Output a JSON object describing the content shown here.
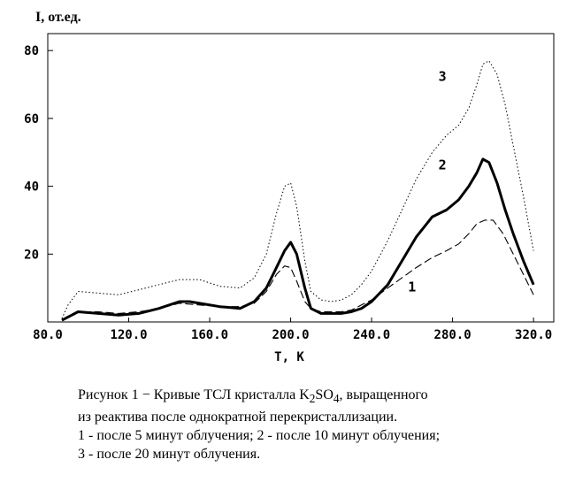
{
  "chart_data": {
    "type": "line",
    "ylabel": "I, от.ед.",
    "xlabel": "T, K",
    "xlim": [
      80,
      330
    ],
    "ylim": [
      0,
      85
    ],
    "xticks": [
      "80.0",
      "120.0",
      "160.0",
      "200.0",
      "240.0",
      "280.0",
      "320.0"
    ],
    "yticks": [
      "20",
      "40",
      "60",
      "80"
    ],
    "grid": false,
    "series": [
      {
        "name": "1",
        "style": "dashed",
        "x": [
          87,
          95,
          105,
          115,
          125,
          135,
          145,
          155,
          165,
          175,
          182,
          188,
          193,
          197,
          200,
          203,
          207,
          210,
          215,
          220,
          225,
          230,
          235,
          240,
          248,
          255,
          262,
          270,
          277,
          283,
          288,
          292,
          296,
          300,
          305,
          310,
          315,
          320
        ],
        "y": [
          0.5,
          3,
          3,
          2.5,
          3,
          4,
          5.5,
          5,
          4.5,
          4.5,
          5.5,
          9,
          14,
          16.5,
          16,
          12,
          6,
          4,
          3,
          3,
          3,
          3.5,
          5,
          6.5,
          10,
          13,
          16,
          19,
          21,
          23,
          26,
          29,
          30,
          30,
          26,
          20,
          14,
          8
        ]
      },
      {
        "name": "2",
        "style": "solid-bold",
        "x": [
          87,
          95,
          105,
          115,
          125,
          135,
          145,
          150,
          155,
          165,
          175,
          182,
          188,
          193,
          197,
          200,
          203,
          207,
          210,
          215,
          220,
          225,
          230,
          235,
          240,
          248,
          255,
          262,
          270,
          277,
          283,
          288,
          292,
          295,
          298,
          302,
          306,
          310,
          315,
          320
        ],
        "y": [
          0.5,
          3,
          2.5,
          2,
          2.5,
          4,
          6,
          6,
          5.5,
          4.5,
          4,
          6,
          10,
          16,
          21,
          23.5,
          20,
          10,
          4,
          2.5,
          2.5,
          2.5,
          3,
          4,
          6,
          11,
          18,
          25,
          31,
          33,
          36,
          40,
          44,
          48,
          47,
          41,
          33,
          26,
          18,
          11
        ]
      },
      {
        "name": "3",
        "style": "dotted",
        "x": [
          87,
          90,
          95,
          105,
          115,
          125,
          135,
          145,
          155,
          165,
          175,
          182,
          188,
          193,
          197,
          200,
          203,
          207,
          210,
          215,
          220,
          225,
          230,
          235,
          240,
          248,
          255,
          262,
          270,
          277,
          283,
          288,
          292,
          295,
          298,
          302,
          306,
          310,
          315,
          320
        ],
        "y": [
          1,
          5,
          9,
          8.5,
          8,
          9.5,
          11,
          12.5,
          12.5,
          10.5,
          10,
          13,
          20,
          32,
          40,
          41,
          34,
          18,
          9,
          6.5,
          6,
          6.5,
          8,
          11,
          15,
          24,
          33,
          42,
          50,
          55,
          58,
          63,
          70,
          76,
          77,
          73,
          64,
          52,
          37,
          21
        ]
      }
    ],
    "curve_labels": [
      {
        "text": "1",
        "x": 258,
        "y": 9
      },
      {
        "text": "2",
        "x": 273,
        "y": 45
      },
      {
        "text": "3",
        "x": 273,
        "y": 71
      }
    ]
  },
  "caption": {
    "line1_a": "Рисунок 1   −  Кривые ТСЛ кристалла K",
    "line1_sub1": "2",
    "line1_b": "SO",
    "line1_sub2": "4",
    "line1_c": ", выращенного",
    "line2": "из реактива после однократной перекристаллизации.",
    "line3": "1 - после 5 минут облучения;  2 - после 10 минут облучения;",
    "line4": "3 - после 20 минут облучения."
  }
}
